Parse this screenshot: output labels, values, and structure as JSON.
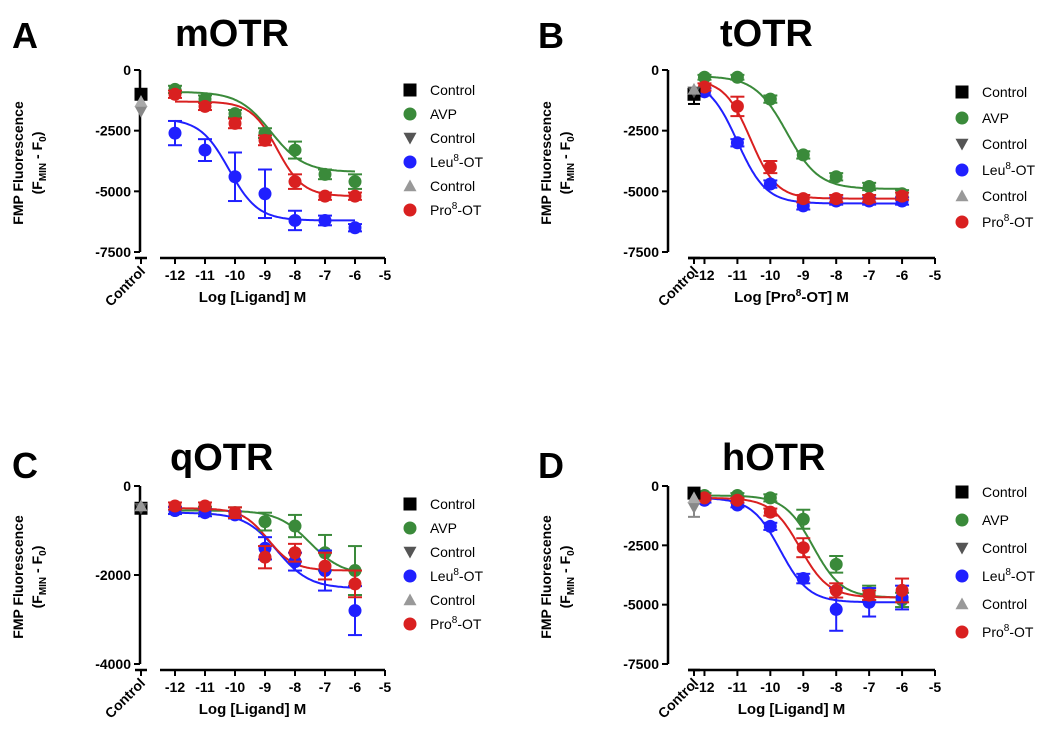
{
  "chart_data": [
    {
      "type": "line",
      "panel_letter": "A",
      "title": "mOTR",
      "xlabel": "Log [Ligand] M",
      "ylabel_line1": "FMP Fluorescence",
      "ylabel_line2_main": "(F",
      "ylabel_line2_sub": "MIN",
      "ylabel_line2_mid": " - F",
      "ylabel_line2_sub2": "0",
      "ylabel_line2_end": ")",
      "control_label": "Control",
      "ylim": [
        -7500,
        0
      ],
      "yticks": [
        0,
        -2500,
        -5000,
        -7500
      ],
      "xlim": [
        -12.5,
        -5
      ],
      "xticks": [
        -12,
        -11,
        -10,
        -9,
        -8,
        -7,
        -6,
        -5
      ],
      "controls": [
        {
          "marker": "square",
          "color": "#000000",
          "y": -1000
        },
        {
          "marker": "triangle-down",
          "color": "#888888",
          "y": -1700
        },
        {
          "marker": "triangle-up",
          "color": "#aaaaaa",
          "y": -1300
        }
      ],
      "series": [
        {
          "name": "AVP",
          "color": "#3a8a3a",
          "x": [
            -12,
            -11,
            -10,
            -9,
            -8,
            -7,
            -6
          ],
          "y": [
            -800,
            -1200,
            -1800,
            -2600,
            -3300,
            -4300,
            -4600
          ],
          "err": [
            150,
            150,
            150,
            200,
            350,
            200,
            300
          ],
          "fit": {
            "top": -900,
            "bottom": -4200,
            "logec50": -8.8,
            "hill": 0.8
          }
        },
        {
          "name": "Leu8-OT",
          "color": "#2020ff",
          "x": [
            -12,
            -11,
            -10,
            -9,
            -8,
            -7,
            -6
          ],
          "y": [
            -2600,
            -3300,
            -4400,
            -5100,
            -6200,
            -6200,
            -6500
          ],
          "err": [
            500,
            450,
            1000,
            1000,
            400,
            200,
            150
          ],
          "fit": {
            "top": -2000,
            "bottom": -6200,
            "logec50": -10.2,
            "hill": 0.9
          }
        },
        {
          "name": "Pro8-OT",
          "color": "#d92020",
          "x": [
            -12,
            -11,
            -10,
            -9,
            -8,
            -7,
            -6
          ],
          "y": [
            -1000,
            -1500,
            -2200,
            -2900,
            -4600,
            -5200,
            -5200
          ],
          "err": [
            150,
            150,
            200,
            200,
            300,
            150,
            150
          ],
          "fit": {
            "top": -1300,
            "bottom": -5200,
            "logec50": -8.6,
            "hill": 1.0
          }
        }
      ],
      "legend": [
        {
          "label": "Control",
          "marker": "square",
          "color": "#000000"
        },
        {
          "label": "AVP",
          "marker": "circle",
          "color": "#3a8a3a"
        },
        {
          "label": "Control",
          "marker": "triangle-down",
          "color": "#555555"
        },
        {
          "label": "Leu",
          "sup": "8",
          "suffix": "-OT",
          "marker": "circle",
          "color": "#2020ff"
        },
        {
          "label": "Control",
          "marker": "triangle-up",
          "color": "#999999"
        },
        {
          "label": "Pro",
          "sup": "8",
          "suffix": "-OT",
          "marker": "circle",
          "color": "#d92020"
        }
      ]
    },
    {
      "type": "line",
      "panel_letter": "B",
      "title": "tOTR",
      "xlabel_main": "Log [Pro",
      "xlabel_sup": "8",
      "xlabel_end": "-OT] M",
      "ylabel_line1": "FMP Fluorescence",
      "ylabel_line2_main": "(F",
      "ylabel_line2_sub": "MIN",
      "ylabel_line2_mid": " - F",
      "ylabel_line2_sub2": "0",
      "ylabel_line2_end": ")",
      "control_label": "Control",
      "ylim": [
        -7500,
        0
      ],
      "yticks": [
        0,
        -2500,
        -5000,
        -7500
      ],
      "xlim": [
        -12.5,
        -5
      ],
      "xticks": [
        -12,
        -11,
        -10,
        -9,
        -8,
        -7,
        -6,
        -5
      ],
      "controls": [
        {
          "marker": "square",
          "color": "#000000",
          "y": -1000,
          "err": 400
        },
        {
          "marker": "triangle-down",
          "color": "#555555",
          "y": -900
        },
        {
          "marker": "triangle-up",
          "color": "#999999",
          "y": -800
        }
      ],
      "series": [
        {
          "name": "AVP",
          "color": "#3a8a3a",
          "x": [
            -12,
            -11,
            -10,
            -9,
            -8,
            -7,
            -6
          ],
          "y": [
            -300,
            -300,
            -1200,
            -3500,
            -4400,
            -4800,
            -5100
          ],
          "err": [
            100,
            100,
            150,
            150,
            150,
            150,
            150
          ],
          "fit": {
            "top": -250,
            "bottom": -4900,
            "logec50": -9.5,
            "hill": 0.9
          }
        },
        {
          "name": "Leu8-OT",
          "color": "#2020ff",
          "x": [
            -12,
            -11,
            -10,
            -9,
            -8,
            -7,
            -6
          ],
          "y": [
            -900,
            -3000,
            -4700,
            -5600,
            -5400,
            -5400,
            -5400
          ],
          "err": [
            150,
            150,
            150,
            150,
            150,
            150,
            150
          ],
          "fit": {
            "top": -400,
            "bottom": -5500,
            "logec50": -11.0,
            "hill": 1.0
          }
        },
        {
          "name": "Pro8-OT",
          "color": "#d92020",
          "x": [
            -12,
            -11,
            -10,
            -9,
            -8,
            -7,
            -6
          ],
          "y": [
            -700,
            -1500,
            -4000,
            -5300,
            -5300,
            -5300,
            -5200
          ],
          "err": [
            150,
            400,
            250,
            150,
            150,
            150,
            150
          ],
          "fit": {
            "top": -400,
            "bottom": -5300,
            "logec50": -10.6,
            "hill": 1.1
          }
        }
      ],
      "legend": [
        {
          "label": "Control",
          "marker": "square",
          "color": "#000000"
        },
        {
          "label": "AVP",
          "marker": "circle",
          "color": "#3a8a3a"
        },
        {
          "label": "Control",
          "marker": "triangle-down",
          "color": "#555555"
        },
        {
          "label": "Leu",
          "sup": "8",
          "suffix": "-OT",
          "marker": "circle",
          "color": "#2020ff"
        },
        {
          "label": "Control",
          "marker": "triangle-up",
          "color": "#999999"
        },
        {
          "label": "Pro",
          "sup": "8",
          "suffix": "-OT",
          "marker": "circle",
          "color": "#d92020"
        }
      ]
    },
    {
      "type": "line",
      "panel_letter": "C",
      "title": "qOTR",
      "xlabel": "Log [Ligand] M",
      "ylabel_line1": "FMP Fluorescence",
      "ylabel_line2_main": "(F",
      "ylabel_line2_sub": "MIN",
      "ylabel_line2_mid": " - F",
      "ylabel_line2_sub2": "0",
      "ylabel_line2_end": ")",
      "control_label": "Control",
      "ylim": [
        -4000,
        0
      ],
      "yticks": [
        0,
        -2000,
        -4000
      ],
      "xlim": [
        -12.5,
        -5
      ],
      "xticks": [
        -12,
        -11,
        -10,
        -9,
        -8,
        -7,
        -6,
        -5
      ],
      "controls": [
        {
          "marker": "square",
          "color": "#000000",
          "y": -500
        },
        {
          "marker": "triangle-down",
          "color": "#555555",
          "y": -500
        },
        {
          "marker": "triangle-up",
          "color": "#999999",
          "y": -450
        }
      ],
      "series": [
        {
          "name": "AVP",
          "color": "#3a8a3a",
          "x": [
            -12,
            -11,
            -10,
            -9,
            -8,
            -7,
            -6
          ],
          "y": [
            -550,
            -550,
            -600,
            -800,
            -900,
            -1500,
            -1900
          ],
          "err": [
            80,
            80,
            120,
            200,
            250,
            400,
            550
          ],
          "fit": {
            "top": -550,
            "bottom": -2000,
            "logec50": -7.5,
            "hill": 0.8
          }
        },
        {
          "name": "Leu8-OT",
          "color": "#2020ff",
          "x": [
            -12,
            -11,
            -10,
            -9,
            -8,
            -7,
            -6
          ],
          "y": [
            -550,
            -600,
            -650,
            -1400,
            -1700,
            -1900,
            -2800
          ],
          "err": [
            80,
            80,
            80,
            250,
            200,
            450,
            550
          ],
          "fit": {
            "top": -600,
            "bottom": -2300,
            "logec50": -8.6,
            "hill": 0.8
          }
        },
        {
          "name": "Pro8-OT",
          "color": "#d92020",
          "x": [
            -12,
            -11,
            -10,
            -9,
            -8,
            -7,
            -6
          ],
          "y": [
            -450,
            -450,
            -600,
            -1600,
            -1500,
            -1800,
            -2200
          ],
          "err": [
            80,
            80,
            120,
            250,
            200,
            300,
            300
          ],
          "fit": {
            "top": -500,
            "bottom": -1900,
            "logec50": -8.9,
            "hill": 1.0
          }
        }
      ],
      "legend": [
        {
          "label": "Control",
          "marker": "square",
          "color": "#000000"
        },
        {
          "label": "AVP",
          "marker": "circle",
          "color": "#3a8a3a"
        },
        {
          "label": "Control",
          "marker": "triangle-down",
          "color": "#555555"
        },
        {
          "label": "Leu",
          "sup": "8",
          "suffix": "-OT",
          "marker": "circle",
          "color": "#2020ff"
        },
        {
          "label": "Control",
          "marker": "triangle-up",
          "color": "#999999"
        },
        {
          "label": "Pro",
          "sup": "8",
          "suffix": "-OT",
          "marker": "circle",
          "color": "#d92020"
        }
      ]
    },
    {
      "type": "line",
      "panel_letter": "D",
      "title": "hOTR",
      "xlabel": "Log [Ligand] M",
      "ylabel_line1": "FMP Fluorescence",
      "ylabel_line2_main": "(F",
      "ylabel_line2_sub": "MIN",
      "ylabel_line2_mid": " - F",
      "ylabel_line2_sub2": "0",
      "ylabel_line2_end": ")",
      "control_label": "Control",
      "ylim": [
        -7500,
        0
      ],
      "yticks": [
        0,
        -2500,
        -5000,
        -7500
      ],
      "xlim": [
        -12.5,
        -5
      ],
      "xticks": [
        -12,
        -11,
        -10,
        -9,
        -8,
        -7,
        -6,
        -5
      ],
      "controls": [
        {
          "marker": "square",
          "color": "#000000",
          "y": -300
        },
        {
          "marker": "triangle-down",
          "color": "#888888",
          "y": -900,
          "err": 400
        },
        {
          "marker": "triangle-up",
          "color": "#aaaaaa",
          "y": -500
        }
      ],
      "series": [
        {
          "name": "AVP",
          "color": "#3a8a3a",
          "x": [
            -12,
            -11,
            -10,
            -9,
            -8,
            -7,
            -6
          ],
          "y": [
            -400,
            -400,
            -500,
            -1400,
            -3300,
            -4500,
            -4800
          ],
          "err": [
            100,
            100,
            150,
            400,
            350,
            300,
            300
          ],
          "fit": {
            "top": -400,
            "bottom": -4700,
            "logec50": -8.7,
            "hill": 1.0
          }
        },
        {
          "name": "Leu8-OT",
          "color": "#2020ff",
          "x": [
            -12,
            -11,
            -10,
            -9,
            -8,
            -7,
            -6
          ],
          "y": [
            -600,
            -800,
            -1700,
            -3900,
            -5200,
            -4900,
            -4700
          ],
          "err": [
            100,
            100,
            150,
            200,
            900,
            600,
            500
          ],
          "fit": {
            "top": -500,
            "bottom": -4900,
            "logec50": -9.7,
            "hill": 1.0
          }
        },
        {
          "name": "Pro8-OT",
          "color": "#d92020",
          "x": [
            -12,
            -11,
            -10,
            -9,
            -8,
            -7,
            -6
          ],
          "y": [
            -500,
            -600,
            -1100,
            -2600,
            -4400,
            -4600,
            -4400
          ],
          "err": [
            100,
            100,
            150,
            400,
            300,
            200,
            500
          ],
          "fit": {
            "top": -500,
            "bottom": -4700,
            "logec50": -9.1,
            "hill": 1.0
          }
        }
      ],
      "legend": [
        {
          "label": "Control",
          "marker": "square",
          "color": "#000000"
        },
        {
          "label": "AVP",
          "marker": "circle",
          "color": "#3a8a3a"
        },
        {
          "label": "Control",
          "marker": "triangle-down",
          "color": "#555555"
        },
        {
          "label": "Leu",
          "sup": "8",
          "suffix": "-OT",
          "marker": "circle",
          "color": "#2020ff"
        },
        {
          "label": "Control",
          "marker": "triangle-up",
          "color": "#999999"
        },
        {
          "label": "Pro",
          "sup": "8",
          "suffix": "-OT",
          "marker": "circle",
          "color": "#d92020"
        }
      ]
    }
  ]
}
